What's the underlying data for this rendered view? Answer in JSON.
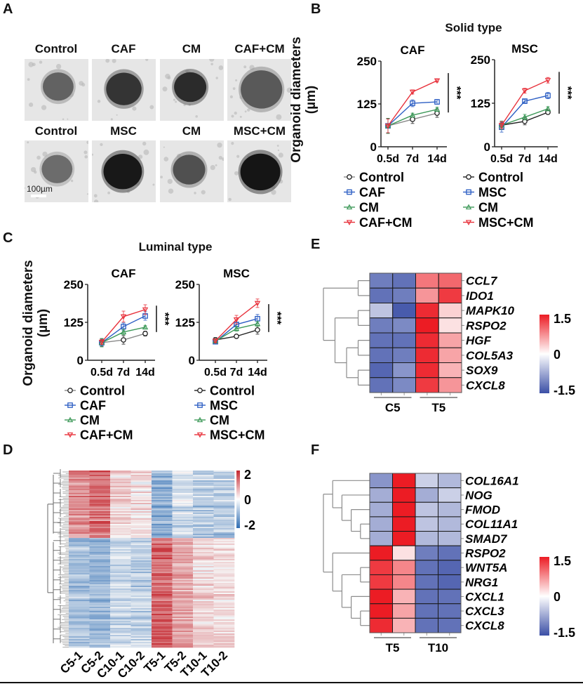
{
  "panels": {
    "A": {
      "letter": "A",
      "row1_titles": [
        "Control",
        "CAF",
        "CM",
        "CAF+CM"
      ],
      "row2_titles": [
        "Control",
        "MSC",
        "CM",
        "MSC+CM"
      ],
      "scale_bar_label": "100µm",
      "images": [
        {
          "group": "Control",
          "row": 1,
          "organoid_size": 0.45,
          "organoid_darkness": 0.55
        },
        {
          "group": "CAF",
          "row": 1,
          "organoid_size": 0.6,
          "organoid_darkness": 0.8
        },
        {
          "group": "CM",
          "row": 1,
          "organoid_size": 0.5,
          "organoid_darkness": 0.85
        },
        {
          "group": "CAF+CM",
          "row": 1,
          "organoid_size": 0.8,
          "organoid_darkness": 0.6
        },
        {
          "group": "Control",
          "row": 2,
          "organoid_size": 0.45,
          "organoid_darkness": 0.5
        },
        {
          "group": "MSC",
          "row": 2,
          "organoid_size": 0.7,
          "organoid_darkness": 0.95
        },
        {
          "group": "CM",
          "row": 2,
          "organoid_size": 0.5,
          "organoid_darkness": 0.65
        },
        {
          "group": "MSC+CM",
          "row": 2,
          "organoid_size": 0.75,
          "organoid_darkness": 0.97
        }
      ]
    },
    "B": {
      "letter": "B",
      "title": "Solid type",
      "ylabel": "Organoid diameters",
      "ylabel2": "(µm)"
    },
    "C": {
      "letter": "C",
      "title": "Luminal type",
      "ylabel": "Organoid diameters",
      "ylabel2": "(µm)"
    },
    "D": {
      "letter": "D"
    },
    "E": {
      "letter": "E"
    },
    "F": {
      "letter": "F"
    }
  },
  "colors": {
    "control": "#222222",
    "control_line_caf": "#8a8a8a",
    "treat": "#2d5fc4",
    "cm": "#3f9a5a",
    "combo": "#e8323c",
    "heat_low": "#3b4fa6",
    "heat_mid": "#ffffff",
    "heat_high": "#ec1c24",
    "d_low": "#2f6db3",
    "d_high": "#c4262e"
  },
  "chart_data": [
    {
      "id": "B-CAF",
      "type": "line",
      "panel": "B",
      "title": "CAF",
      "x": [
        "0.5d",
        "7d",
        "14d"
      ],
      "ylim": [
        0,
        250
      ],
      "yticks": [
        0,
        125,
        250
      ],
      "ylabel": "Organoid diameters (µm)",
      "significance": "***",
      "series": [
        {
          "name": "Control",
          "marker": "circle",
          "color_key": "control",
          "line_key": "control_line_caf",
          "values": [
            61,
            80,
            98
          ],
          "err": [
            22,
            12,
            12
          ]
        },
        {
          "name": "CAF",
          "marker": "square",
          "color_key": "treat",
          "values": [
            61,
            127,
            131
          ],
          "err": [
            20,
            10,
            7
          ]
        },
        {
          "name": "CM",
          "marker": "triangle-up",
          "color_key": "cm",
          "values": [
            61,
            92,
            109
          ],
          "err": [
            22,
            6,
            6
          ]
        },
        {
          "name": "CAF+CM",
          "marker": "triangle-down",
          "color_key": "combo",
          "values": [
            61,
            160,
            193
          ],
          "err": [
            20,
            6,
            4
          ]
        }
      ]
    },
    {
      "id": "B-MSC",
      "type": "line",
      "panel": "B",
      "title": "MSC",
      "x": [
        "0.5d",
        "7d",
        "14d"
      ],
      "ylim": [
        0,
        250
      ],
      "yticks": [
        0,
        125,
        250
      ],
      "significance": "***",
      "series": [
        {
          "name": "Control",
          "marker": "circle",
          "color_key": "control",
          "line_key": "control",
          "values": [
            62,
            73,
            99
          ],
          "err": [
            10,
            10,
            5
          ]
        },
        {
          "name": "MSC",
          "marker": "square",
          "color_key": "treat",
          "values": [
            56,
            131,
            147
          ],
          "err": [
            14,
            5,
            9
          ]
        },
        {
          "name": "CM",
          "marker": "triangle-up",
          "color_key": "cm",
          "values": [
            62,
            85,
            109
          ],
          "err": [
            12,
            8,
            6
          ]
        },
        {
          "name": "MSC+CM",
          "marker": "triangle-down",
          "color_key": "combo",
          "values": [
            62,
            161,
            191
          ],
          "err": [
            10,
            7,
            8
          ]
        }
      ]
    },
    {
      "id": "C-CAF",
      "type": "line",
      "panel": "C",
      "title": "CAF",
      "x": [
        "0.5d",
        "7d",
        "14d"
      ],
      "ylim": [
        0,
        250
      ],
      "yticks": [
        0,
        125,
        250
      ],
      "ylabel": "Organoid diameters (µm)",
      "significance": "***",
      "series": [
        {
          "name": "Control",
          "marker": "circle",
          "color_key": "control",
          "line_key": "control_line_caf",
          "values": [
            58,
            67,
            88
          ],
          "err": [
            12,
            14,
            8
          ]
        },
        {
          "name": "CAF",
          "marker": "square",
          "color_key": "treat",
          "values": [
            58,
            111,
            146
          ],
          "err": [
            10,
            12,
            14
          ]
        },
        {
          "name": "CM",
          "marker": "triangle-up",
          "color_key": "cm",
          "values": [
            58,
            93,
            109
          ],
          "err": [
            14,
            9,
            5
          ]
        },
        {
          "name": "CAF+CM",
          "marker": "triangle-down",
          "color_key": "combo",
          "values": [
            60,
            144,
            167
          ],
          "err": [
            8,
            18,
            16
          ]
        }
      ]
    },
    {
      "id": "C-MSC",
      "type": "line",
      "panel": "C",
      "title": "MSC",
      "x": [
        "0.5d",
        "7d",
        "14d"
      ],
      "ylim": [
        0,
        250
      ],
      "yticks": [
        0,
        125,
        250
      ],
      "significance": "***",
      "series": [
        {
          "name": "Control",
          "marker": "circle",
          "color_key": "control",
          "line_key": "control",
          "values": [
            67,
            79,
            100
          ],
          "err": [
            8,
            5,
            14
          ]
        },
        {
          "name": "MSC",
          "marker": "square",
          "color_key": "treat",
          "values": [
            61,
            118,
            137
          ],
          "err": [
            6,
            6,
            14
          ]
        },
        {
          "name": "CM",
          "marker": "triangle-up",
          "color_key": "cm",
          "values": [
            63,
            104,
            120
          ],
          "err": [
            6,
            8,
            8
          ]
        },
        {
          "name": "MSC+CM",
          "marker": "triangle-down",
          "color_key": "combo",
          "values": [
            64,
            134,
            188
          ],
          "err": [
            6,
            14,
            14
          ]
        }
      ]
    },
    {
      "id": "D",
      "type": "heatmap",
      "panel": "D",
      "columns": [
        "C5-1",
        "C5-2",
        "C10-1",
        "C10-2",
        "T5-1",
        "T5-2",
        "T10-1",
        "T10-2"
      ],
      "colorbar": {
        "min": -2,
        "max": 2,
        "ticks": [
          "2",
          "0",
          "-2"
        ]
      },
      "row_count_approx": 400,
      "clusters": [
        {
          "name": "cluster-1",
          "fraction": 0.38,
          "mean": [
            1.0,
            1.3,
            0.3,
            0.1,
            -1.1,
            -0.4,
            -0.6,
            -0.6
          ],
          "spread": 0.55
        },
        {
          "name": "cluster-2",
          "fraction": 0.62,
          "mean": [
            -0.8,
            -0.9,
            -0.5,
            -0.6,
            1.4,
            0.8,
            0.3,
            0.25
          ],
          "spread": 0.45
        }
      ],
      "dendrogram": true
    },
    {
      "id": "E",
      "type": "heatmap",
      "panel": "E",
      "columns": [
        "C5-1",
        "C5-2",
        "T5-1",
        "T5-2"
      ],
      "column_groups": [
        {
          "label": "C5",
          "span": [
            0,
            1
          ]
        },
        {
          "label": "T5",
          "span": [
            2,
            3
          ]
        }
      ],
      "rows": [
        "CCL7",
        "IDO1",
        "MAPK10",
        "RSPO2",
        "HGF",
        "COL5A3",
        "SOX9",
        "CXCL8"
      ],
      "values": [
        [
          -1.1,
          -1.2,
          0.9,
          1.0
        ],
        [
          -1.2,
          -1.1,
          0.7,
          1.3
        ],
        [
          -0.5,
          -1.4,
          1.4,
          0.3
        ],
        [
          -1.1,
          -1.0,
          1.5,
          0.2
        ],
        [
          -1.2,
          -1.2,
          1.4,
          0.6
        ],
        [
          -1.2,
          -1.1,
          1.4,
          0.6
        ],
        [
          -1.3,
          -0.9,
          1.4,
          0.5
        ],
        [
          -1.2,
          -1.0,
          1.3,
          0.7
        ]
      ],
      "colorbar": {
        "min": -1.5,
        "max": 1.5,
        "ticks": [
          "1.5",
          "0",
          "-1.5"
        ]
      },
      "dendrogram": [
        [
          0,
          1
        ],
        [
          [
            2,
            3
          ],
          [
            [
              4,
              5
            ],
            [
              6,
              7
            ]
          ]
        ]
      ]
    },
    {
      "id": "F",
      "type": "heatmap",
      "panel": "F",
      "columns": [
        "T5-1",
        "T5-2",
        "T10-1",
        "T10-2"
      ],
      "column_groups": [
        {
          "label": "T5",
          "span": [
            0,
            1
          ]
        },
        {
          "label": "T10",
          "span": [
            2,
            3
          ]
        }
      ],
      "rows": [
        "COL16A1",
        "NOG",
        "FMOD",
        "COL11A1",
        "SMAD7",
        "RSPO2",
        "WNT5A",
        "NRG1",
        "CXCL1",
        "CXCL3",
        "CXCL8"
      ],
      "values": [
        [
          -0.9,
          1.5,
          -0.4,
          -0.6
        ],
        [
          -0.7,
          1.5,
          -0.7,
          -0.4
        ],
        [
          -0.7,
          1.5,
          -0.5,
          -0.6
        ],
        [
          -0.7,
          1.5,
          -0.5,
          -0.6
        ],
        [
          -0.7,
          1.5,
          -0.6,
          -0.6
        ],
        [
          1.5,
          0.2,
          -1.1,
          -1.2
        ],
        [
          1.3,
          0.8,
          -1.2,
          -1.3
        ],
        [
          1.3,
          0.8,
          -1.2,
          -1.3
        ],
        [
          1.5,
          0.5,
          -1.2,
          -1.2
        ],
        [
          1.5,
          0.6,
          -1.2,
          -1.2
        ],
        [
          1.4,
          0.5,
          -1.2,
          -1.2
        ]
      ],
      "colorbar": {
        "min": -1.5,
        "max": 1.5,
        "ticks": [
          "1.5",
          "0",
          "-1.5"
        ]
      },
      "dendrogram": [
        [
          0,
          [
            1,
            [
              2,
              [
                3,
                4
              ]
            ]
          ]
        ],
        [
          5,
          [
            [
              6,
              7
            ],
            [
              8,
              [
                9,
                10
              ]
            ]
          ]
        ]
      ]
    }
  ]
}
